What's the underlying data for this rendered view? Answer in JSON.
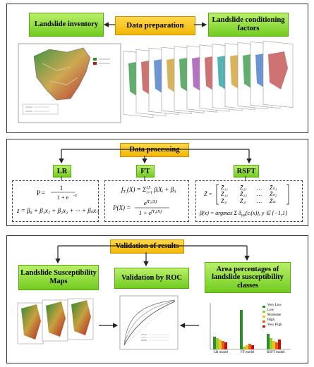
{
  "panel1": {
    "center": "Data preparation",
    "left": "Landslide inventory",
    "right": "Landslide conditioning factors"
  },
  "panel2": {
    "center": "Data processing",
    "methods": [
      "LR",
      "FT",
      "RSFT"
    ],
    "lr_formula1": "P = 1 / (1 + e^−z)",
    "lr_formula2": "z = β0 + β1x1 + β2x2 + ··· + βnxn",
    "ft_formula1": "fT1(X) = Σ βiXi + β0",
    "ft_formula2": "P(X) = e^{fT1(X)} / (1 + e^{fT1(X)})",
    "rsft_formula1": "Z̃ = [Z11 Z21 … Zn1; Z12 Z22 … Zn2; Z1r Z2r … Znr]",
    "rsft_formula2": "β(x) = argmax Σ δyφ(ci(x)), y ∈ {−1,1}"
  },
  "panel3": {
    "center": "Validation of results",
    "left": "Landslide Susceptibility Maps",
    "middle": "Validation by ROC",
    "right": "Area percentages of landslide susceptibility classes"
  },
  "legend": [
    "Very Low",
    "Low",
    "Moderate",
    "High",
    "Very High"
  ],
  "bar_colors": [
    "#2e8b2e",
    "#9acd32",
    "#f0c020",
    "#e06020",
    "#c01010"
  ],
  "models": [
    "LR model",
    "FT model",
    "RSFT model"
  ]
}
